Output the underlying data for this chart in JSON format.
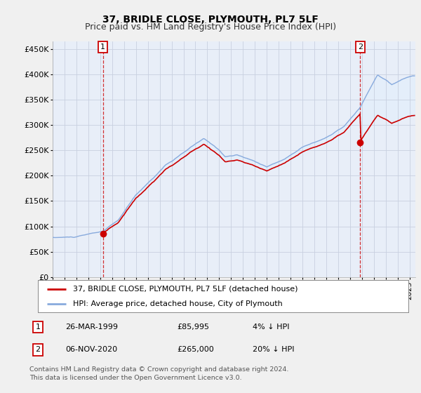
{
  "title": "37, BRIDLE CLOSE, PLYMOUTH, PL7 5LF",
  "subtitle": "Price paid vs. HM Land Registry's House Price Index (HPI)",
  "ylabel_ticks": [
    "£0",
    "£50K",
    "£100K",
    "£150K",
    "£200K",
    "£250K",
    "£300K",
    "£350K",
    "£400K",
    "£450K"
  ],
  "ytick_values": [
    0,
    50000,
    100000,
    150000,
    200000,
    250000,
    300000,
    350000,
    400000,
    450000
  ],
  "ylim": [
    0,
    465000
  ],
  "xlim_start": 1995.0,
  "xlim_end": 2025.5,
  "purchase1_x": 1999.23,
  "purchase1_y": 85995,
  "purchase2_x": 2020.85,
  "purchase2_y": 265000,
  "legend_entries": [
    "37, BRIDLE CLOSE, PLYMOUTH, PL7 5LF (detached house)",
    "HPI: Average price, detached house, City of Plymouth"
  ],
  "annotation1_label": "1",
  "annotation1_date": "26-MAR-1999",
  "annotation1_price": "£85,995",
  "annotation1_hpi": "4% ↓ HPI",
  "annotation2_label": "2",
  "annotation2_date": "06-NOV-2020",
  "annotation2_price": "£265,000",
  "annotation2_hpi": "20% ↓ HPI",
  "footer": "Contains HM Land Registry data © Crown copyright and database right 2024.\nThis data is licensed under the Open Government Licence v3.0.",
  "line_color_property": "#cc0000",
  "line_color_hpi": "#88aadd",
  "fill_color_hpi": "#ddeeff",
  "background_color": "#f0f0f0",
  "plot_bg_color": "#e8eef8",
  "grid_color": "#c8d0e0",
  "annotation_box_color": "#cc0000",
  "title_fontsize": 10,
  "subtitle_fontsize": 9
}
